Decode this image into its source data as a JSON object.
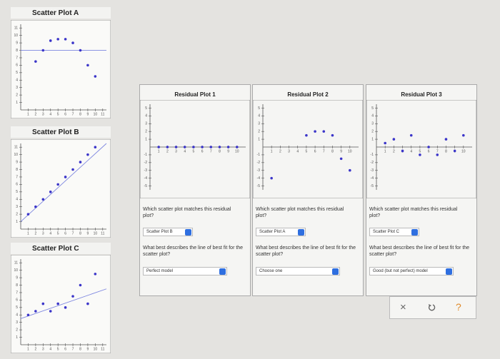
{
  "scatter_plots": [
    {
      "title": "Scatter Plot A",
      "xlim": [
        0,
        11.5
      ],
      "ylim": [
        0,
        11.5
      ],
      "xticks": [
        1,
        2,
        3,
        4,
        5,
        6,
        7,
        8,
        9,
        10,
        11
      ],
      "yticks": [
        1,
        2,
        3,
        4,
        5,
        6,
        7,
        8,
        9,
        10,
        11
      ],
      "x": [
        2,
        3,
        4,
        5,
        6,
        7,
        8,
        9,
        10
      ],
      "y": [
        6.5,
        8,
        9.3,
        9.5,
        9.5,
        9,
        8,
        6,
        4.5
      ],
      "fit_line": {
        "x": [
          0,
          11.5
        ],
        "y": [
          8,
          8
        ]
      }
    },
    {
      "title": "Scatter Plot B",
      "xlim": [
        0,
        11.5
      ],
      "ylim": [
        0,
        11.5
      ],
      "xticks": [
        1,
        2,
        3,
        4,
        5,
        6,
        7,
        8,
        9,
        10,
        11
      ],
      "yticks": [
        1,
        2,
        3,
        4,
        5,
        6,
        7,
        8,
        9,
        10,
        11
      ],
      "x": [
        1,
        2,
        3,
        4,
        5,
        6,
        7,
        8,
        9,
        10
      ],
      "y": [
        2,
        3,
        4,
        5,
        6,
        7,
        8,
        9,
        10,
        11
      ],
      "fit_line": {
        "x": [
          0,
          11.5
        ],
        "y": [
          1,
          11.5
        ]
      }
    },
    {
      "title": "Scatter Plot C",
      "xlim": [
        0,
        11.5
      ],
      "ylim": [
        0,
        11.5
      ],
      "xticks": [
        1,
        2,
        3,
        4,
        5,
        6,
        7,
        8,
        9,
        10,
        11
      ],
      "yticks": [
        1,
        2,
        3,
        4,
        5,
        6,
        7,
        8,
        9,
        10,
        11
      ],
      "x": [
        1,
        2,
        3,
        4,
        5,
        6,
        7,
        8,
        9,
        10
      ],
      "y": [
        4,
        4.5,
        5.5,
        4.5,
        5.5,
        5,
        6.5,
        8,
        5.5,
        9.5
      ],
      "fit_line": {
        "x": [
          0,
          11.5
        ],
        "y": [
          3.5,
          7.5
        ]
      }
    }
  ],
  "residual_cards": [
    {
      "title": "Residual Plot 1",
      "xlim": [
        0,
        11
      ],
      "ylim": [
        -5.5,
        5.5
      ],
      "xticks": [
        1,
        2,
        3,
        4,
        5,
        6,
        7,
        8,
        9,
        10
      ],
      "yticks": [
        -5,
        -4,
        -3,
        -2,
        -1,
        1,
        2,
        3,
        4,
        5
      ],
      "x": [
        1,
        2,
        3,
        4,
        5,
        6,
        7,
        8,
        9,
        10
      ],
      "y": [
        0,
        0,
        0,
        0,
        0,
        0,
        0,
        0,
        0,
        0
      ],
      "question_1": "Which scatter plot matches this residual plot?",
      "answer_1": "Scatter Plot B",
      "question_2": "What best describes the line of best fit for the scatter plot?",
      "answer_2": "Perfect model"
    },
    {
      "title": "Residual Plot 2",
      "xlim": [
        0,
        11
      ],
      "ylim": [
        -5.5,
        5.5
      ],
      "xticks": [
        1,
        2,
        3,
        4,
        5,
        6,
        7,
        8,
        9,
        10
      ],
      "yticks": [
        -5,
        -4,
        -3,
        -2,
        -1,
        1,
        2,
        3,
        4,
        5
      ],
      "x": [
        1,
        5,
        6,
        7,
        8,
        9,
        10
      ],
      "y": [
        -4,
        1.5,
        2,
        2,
        1.5,
        -1.5,
        -3
      ],
      "question_1": "Which scatter plot matches this residual plot?",
      "answer_1": "Scatter Plot A",
      "question_2": "What best describes the line of best fit for the scatter plot?",
      "answer_2": "Choose one"
    },
    {
      "title": "Residual Plot 3",
      "xlim": [
        0,
        11
      ],
      "ylim": [
        -5.5,
        5.5
      ],
      "xticks": [
        1,
        2,
        3,
        4,
        5,
        6,
        7,
        8,
        9,
        10
      ],
      "yticks": [
        -5,
        -4,
        -3,
        -2,
        -1,
        1,
        2,
        3,
        4,
        5
      ],
      "x": [
        1,
        2,
        3,
        4,
        5,
        6,
        7,
        8,
        9,
        10
      ],
      "y": [
        0.5,
        1,
        -0.5,
        1.5,
        -1,
        0,
        -1,
        1,
        -0.5,
        1.5
      ],
      "question_1": "Which scatter plot matches this residual plot?",
      "answer_1": "Scatter Plot C",
      "question_2": "What best describes the line of best fit for the scatter plot?",
      "answer_2": "Good (but not perfect) model"
    }
  ],
  "buttons": {
    "close": "×",
    "help": "?"
  }
}
